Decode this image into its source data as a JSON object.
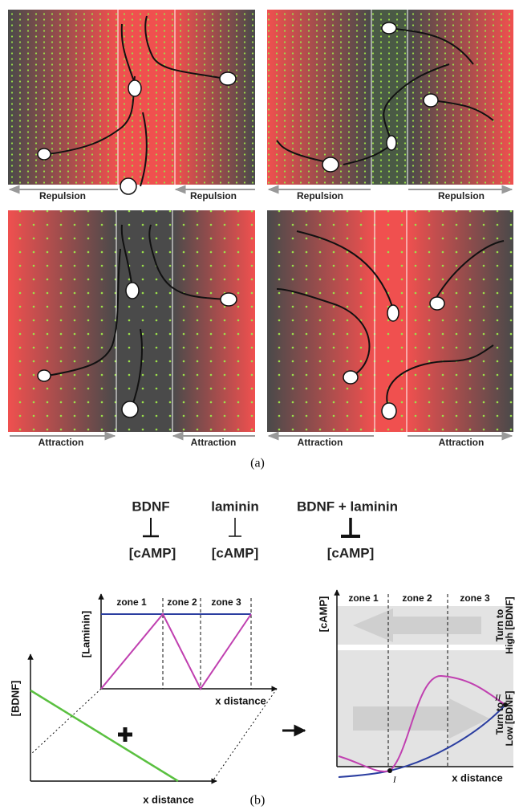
{
  "panel_a": {
    "panels": [
      {
        "left": "Repulsion",
        "right": "Repulsion"
      },
      {
        "left": "Repulsion",
        "right": "Repulsion"
      },
      {
        "left": "Attraction",
        "right": "Attraction"
      },
      {
        "left": "Attraction",
        "right": "Attraction"
      }
    ],
    "caption": "(a)"
  },
  "panel_b": {
    "inhibition": [
      {
        "agent": "BDNF",
        "target": "[cAMP]"
      },
      {
        "agent": "laminin",
        "target": "[cAMP]"
      },
      {
        "agent": "BDNF + laminin",
        "target": "[cAMP]"
      }
    ],
    "laminin_plot": {
      "y_label": "[Laminin]",
      "zones": [
        "zone 1",
        "zone 2",
        "zone 3"
      ],
      "x_label": "x distance"
    },
    "bdnf_plot": {
      "y_label": "[BDNF]",
      "x_label": "x distance"
    },
    "camp_plot": {
      "y_label": "[cAMP]",
      "zones": [
        "zone 1",
        "zone 2",
        "zone 3"
      ],
      "x_label": "x distance",
      "turn_high": [
        "Turn to",
        "High [BDNF]"
      ],
      "turn_low": [
        "Turn to",
        "Low [BDNF]"
      ],
      "points": [
        "I",
        "II"
      ]
    },
    "caption": "(b)"
  }
}
